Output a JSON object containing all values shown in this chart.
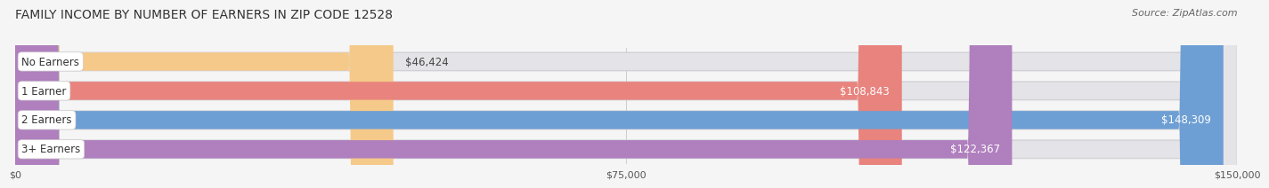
{
  "title": "FAMILY INCOME BY NUMBER OF EARNERS IN ZIP CODE 12528",
  "source": "Source: ZipAtlas.com",
  "categories": [
    "No Earners",
    "1 Earner",
    "2 Earners",
    "3+ Earners"
  ],
  "values": [
    46424,
    108843,
    148309,
    122367
  ],
  "bar_colors": [
    "#f5c98a",
    "#e8837e",
    "#6e9fd4",
    "#b07fbe"
  ],
  "track_color": "#e4e4e8",
  "track_border_color": "#d0d0d6",
  "label_bg": "#ffffff",
  "value_colors": [
    "#666666",
    "#ffffff",
    "#ffffff",
    "#ffffff"
  ],
  "x_max": 150000,
  "x_ticks": [
    0,
    75000,
    150000
  ],
  "x_tick_labels": [
    "$0",
    "$75,000",
    "$150,000"
  ],
  "title_fontsize": 10,
  "source_fontsize": 8,
  "label_fontsize": 8.5,
  "value_fontsize": 8.5,
  "background_color": "#f5f5f5"
}
